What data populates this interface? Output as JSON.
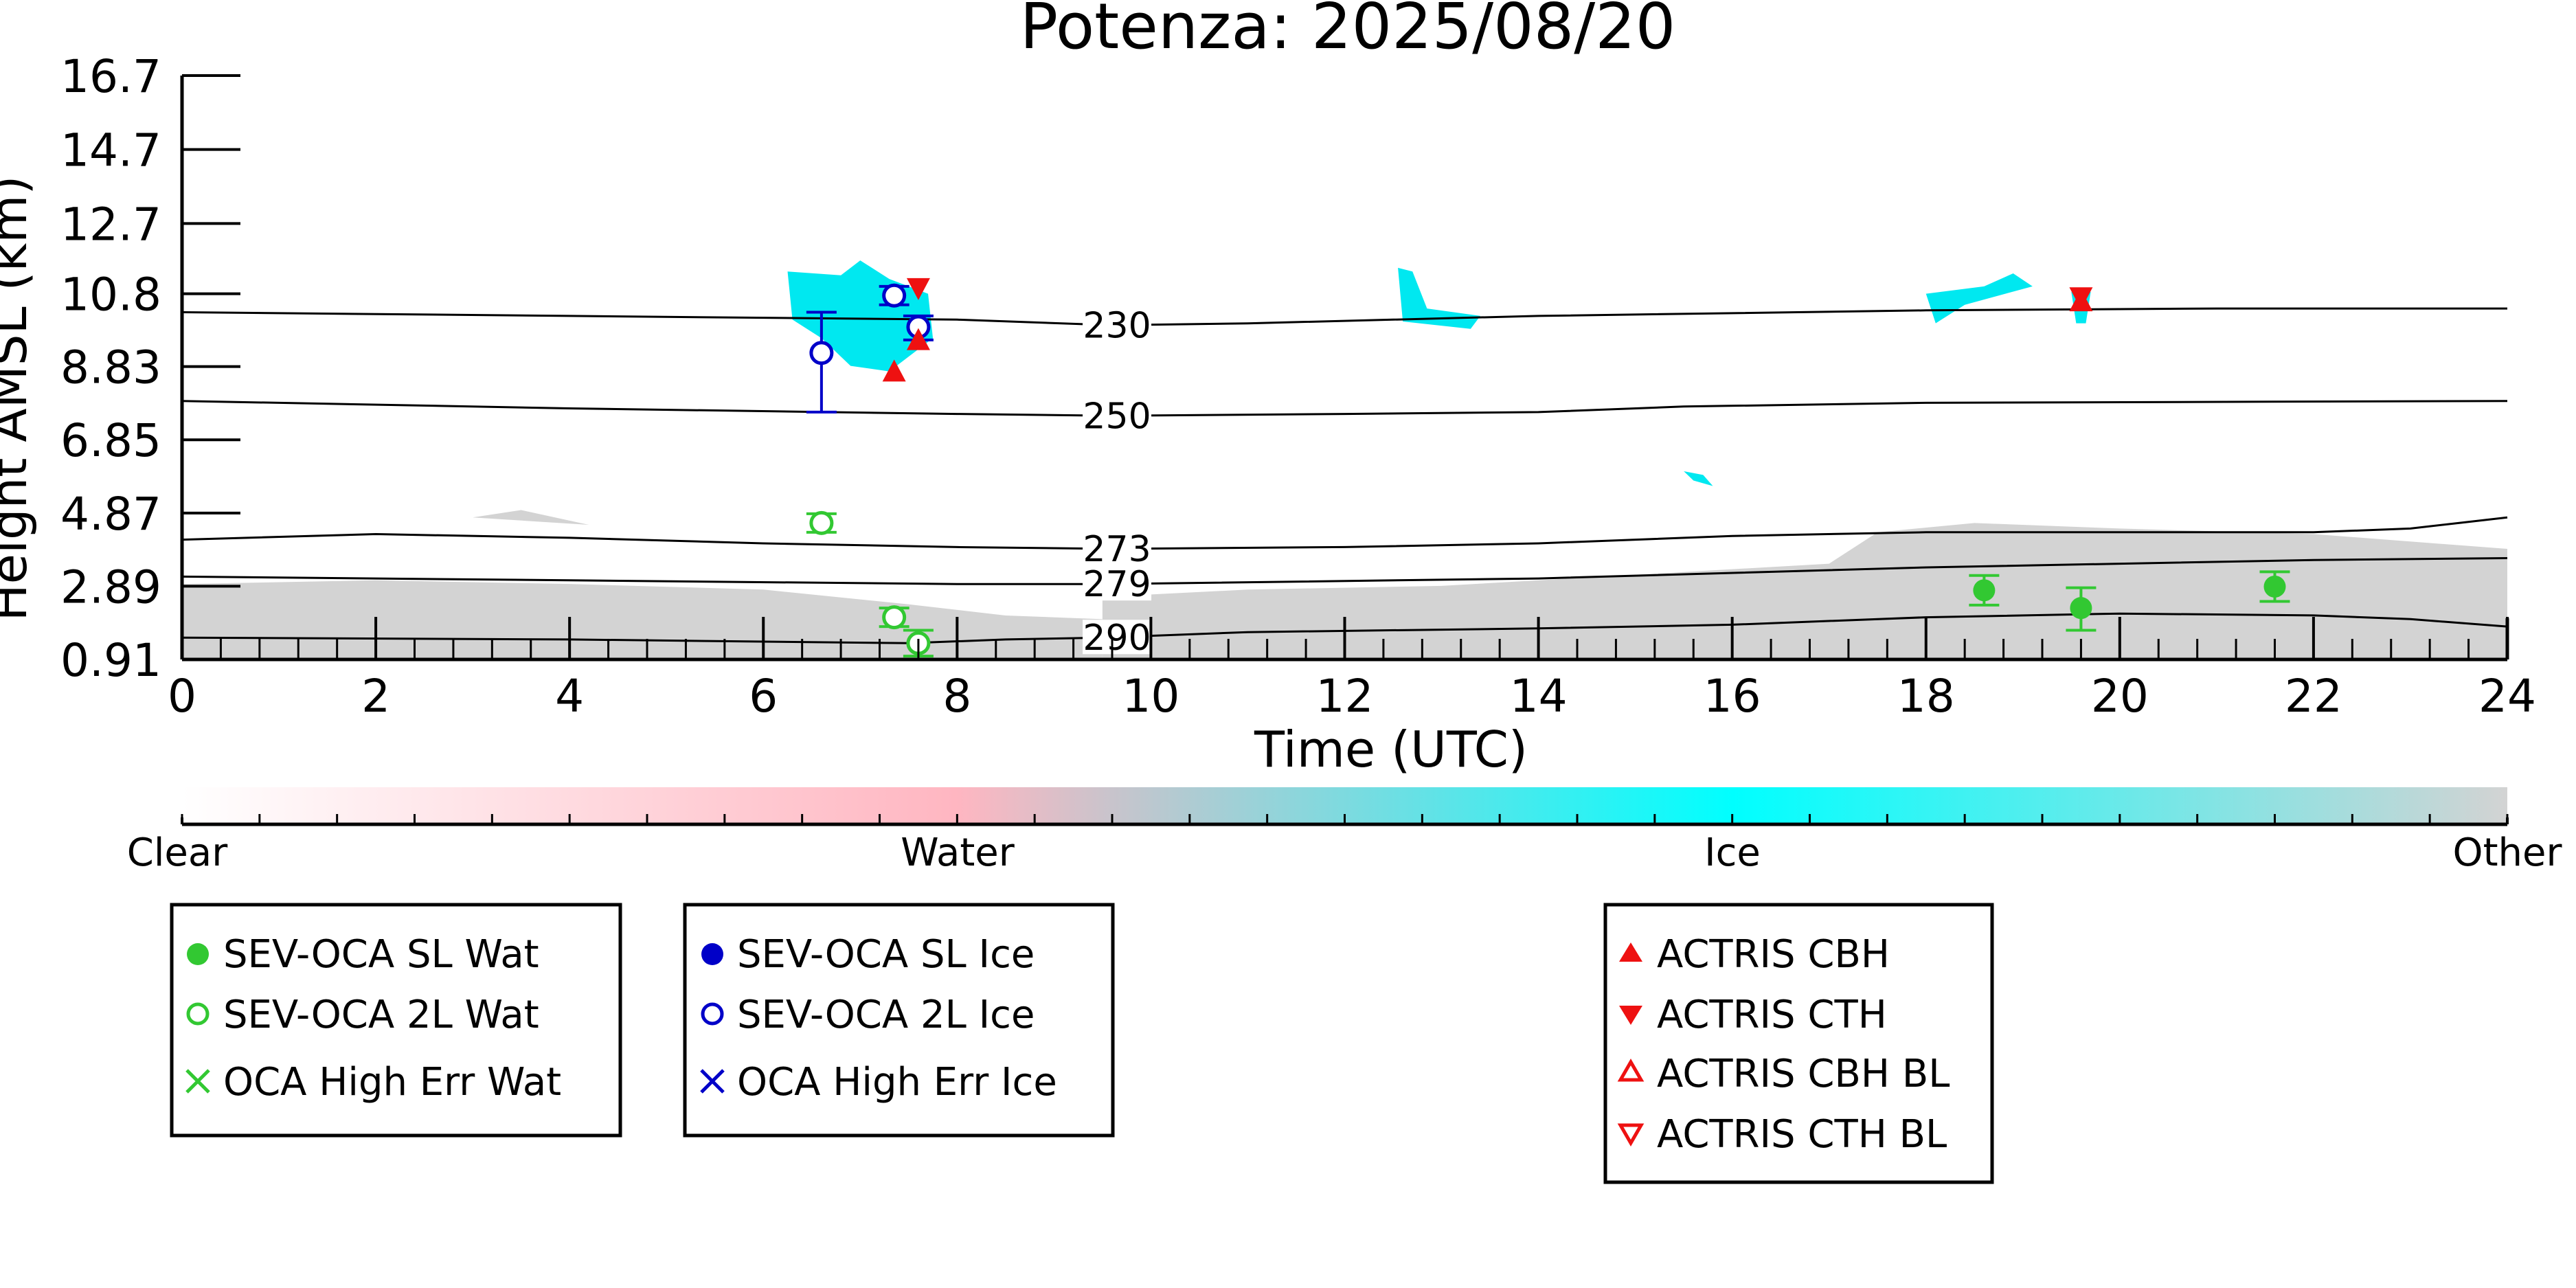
{
  "chart_data": {
    "type": "scatter",
    "title": "Potenza: 2025/08/20",
    "xlabel": "Time (UTC)",
    "ylabel": "Height AMSL (km)",
    "xlim": [
      0,
      24
    ],
    "ylim": [
      0.91,
      16.7
    ],
    "x_ticks": [
      "0",
      "2",
      "4",
      "6",
      "8",
      "10",
      "12",
      "14",
      "16",
      "18",
      "20",
      "22",
      "24"
    ],
    "x_tick_values": [
      0,
      2,
      4,
      6,
      8,
      10,
      12,
      14,
      16,
      18,
      20,
      22,
      24
    ],
    "y_ticks": [
      "0.91",
      "2.89",
      "4.87",
      "6.85",
      "8.83",
      "10.8",
      "12.7",
      "14.7",
      "16.7"
    ],
    "y_tick_values": [
      0.91,
      2.89,
      4.87,
      6.85,
      8.83,
      10.8,
      12.7,
      14.7,
      16.7
    ],
    "isotherms": [
      {
        "label": "230",
        "label_x": 9.65,
        "points": [
          [
            0,
            10.3
          ],
          [
            4,
            10.2
          ],
          [
            8,
            10.1
          ],
          [
            9.6,
            9.95
          ],
          [
            11,
            10.0
          ],
          [
            14,
            10.2
          ],
          [
            18,
            10.35
          ],
          [
            21,
            10.4
          ],
          [
            24,
            10.4
          ]
        ]
      },
      {
        "label": "250",
        "label_x": 9.65,
        "points": [
          [
            0,
            7.9
          ],
          [
            4,
            7.7
          ],
          [
            8,
            7.55
          ],
          [
            9.6,
            7.5
          ],
          [
            12,
            7.55
          ],
          [
            14,
            7.6
          ],
          [
            15.5,
            7.75
          ],
          [
            18,
            7.85
          ],
          [
            24,
            7.9
          ]
        ]
      },
      {
        "label": "273",
        "label_x": 9.65,
        "points": [
          [
            0,
            4.15
          ],
          [
            2,
            4.3
          ],
          [
            4,
            4.2
          ],
          [
            6,
            4.05
          ],
          [
            8,
            3.95
          ],
          [
            9.6,
            3.9
          ],
          [
            12,
            3.95
          ],
          [
            14,
            4.05
          ],
          [
            16,
            4.25
          ],
          [
            18,
            4.35
          ],
          [
            20,
            4.35
          ],
          [
            22,
            4.35
          ],
          [
            23,
            4.45
          ],
          [
            24,
            4.75
          ]
        ]
      },
      {
        "label": "279",
        "label_x": 9.65,
        "points": [
          [
            0,
            3.15
          ],
          [
            4,
            3.05
          ],
          [
            8,
            2.95
          ],
          [
            9.6,
            2.95
          ],
          [
            14,
            3.1
          ],
          [
            18,
            3.4
          ],
          [
            20,
            3.5
          ],
          [
            22,
            3.6
          ],
          [
            24,
            3.65
          ]
        ]
      },
      {
        "label": "290",
        "label_x": 9.65,
        "points": [
          [
            0,
            1.5
          ],
          [
            4,
            1.45
          ],
          [
            7.5,
            1.35
          ],
          [
            8.5,
            1.45
          ],
          [
            9.5,
            1.5
          ],
          [
            11,
            1.65
          ],
          [
            14,
            1.75
          ],
          [
            16,
            1.85
          ],
          [
            18,
            2.05
          ],
          [
            20,
            2.15
          ],
          [
            22,
            2.1
          ],
          [
            23,
            2.0
          ],
          [
            24,
            1.8
          ]
        ]
      }
    ],
    "series": [
      {
        "name": "SEV-OCA SL Wat",
        "marker": "filled-circle",
        "color": "#32c832",
        "points": [
          {
            "x": 18.6,
            "y": 2.78,
            "err": [
              2.38,
              3.18
            ]
          },
          {
            "x": 19.6,
            "y": 2.3,
            "err": [
              1.7,
              2.85
            ]
          },
          {
            "x": 21.6,
            "y": 2.88,
            "err": [
              2.48,
              3.28
            ]
          }
        ]
      },
      {
        "name": "SEV-OCA 2L Wat",
        "marker": "open-circle",
        "color": "#32c832",
        "points": [
          {
            "x": 6.6,
            "y": 4.6,
            "err": [
              4.35,
              4.85
            ]
          },
          {
            "x": 7.35,
            "y": 2.05,
            "err": [
              1.8,
              2.3
            ]
          },
          {
            "x": 7.6,
            "y": 1.35,
            "err": [
              1.0,
              1.7
            ]
          }
        ]
      },
      {
        "name": "OCA High Err Wat",
        "marker": "x",
        "color": "#32c832",
        "points": []
      },
      {
        "name": "SEV-OCA SL Ice",
        "marker": "filled-circle",
        "color": "#0000c8",
        "points": []
      },
      {
        "name": "SEV-OCA 2L Ice",
        "marker": "open-circle",
        "color": "#0000c8",
        "points": [
          {
            "x": 6.6,
            "y": 9.2,
            "err": [
              7.6,
              10.3
            ]
          },
          {
            "x": 7.35,
            "y": 10.75,
            "err": [
              10.5,
              11.0
            ]
          },
          {
            "x": 7.6,
            "y": 9.9,
            "err": [
              9.55,
              10.2
            ]
          }
        ]
      },
      {
        "name": "OCA High Err Ice",
        "marker": "x",
        "color": "#0000c8",
        "points": []
      },
      {
        "name": "ACTRIS CBH",
        "marker": "triangle-up",
        "color": "#ee1111",
        "points": [
          {
            "x": 7.35,
            "y": 8.65
          },
          {
            "x": 7.6,
            "y": 9.5
          },
          {
            "x": 19.6,
            "y": 10.55
          }
        ]
      },
      {
        "name": "ACTRIS CTH",
        "marker": "triangle-down",
        "color": "#ee1111",
        "points": [
          {
            "x": 7.6,
            "y": 11.0
          },
          {
            "x": 19.6,
            "y": 10.75
          }
        ]
      },
      {
        "name": "ACTRIS CBH BL",
        "marker": "open-triangle-up",
        "color": "#ee1111",
        "points": []
      },
      {
        "name": "ACTRIS CTH BL",
        "marker": "open-triangle-down",
        "color": "#ee1111",
        "points": []
      }
    ],
    "colorbar": {
      "labels": [
        "Clear",
        "Water",
        "Ice",
        "Other"
      ],
      "colors": [
        "#ffffff",
        "#ffb6c1",
        "#00ffff",
        "#d3d3d3"
      ]
    },
    "grid": false
  },
  "legends": [
    {
      "items": [
        "SEV-OCA SL Wat",
        "SEV-OCA 2L Wat",
        "OCA High Err Wat"
      ]
    },
    {
      "items": [
        "SEV-OCA SL Ice",
        "SEV-OCA 2L Ice",
        "OCA High Err Ice"
      ]
    },
    {
      "items": [
        "ACTRIS CBH",
        "ACTRIS CTH",
        "ACTRIS CBH BL",
        "ACTRIS CTH BL"
      ]
    }
  ]
}
